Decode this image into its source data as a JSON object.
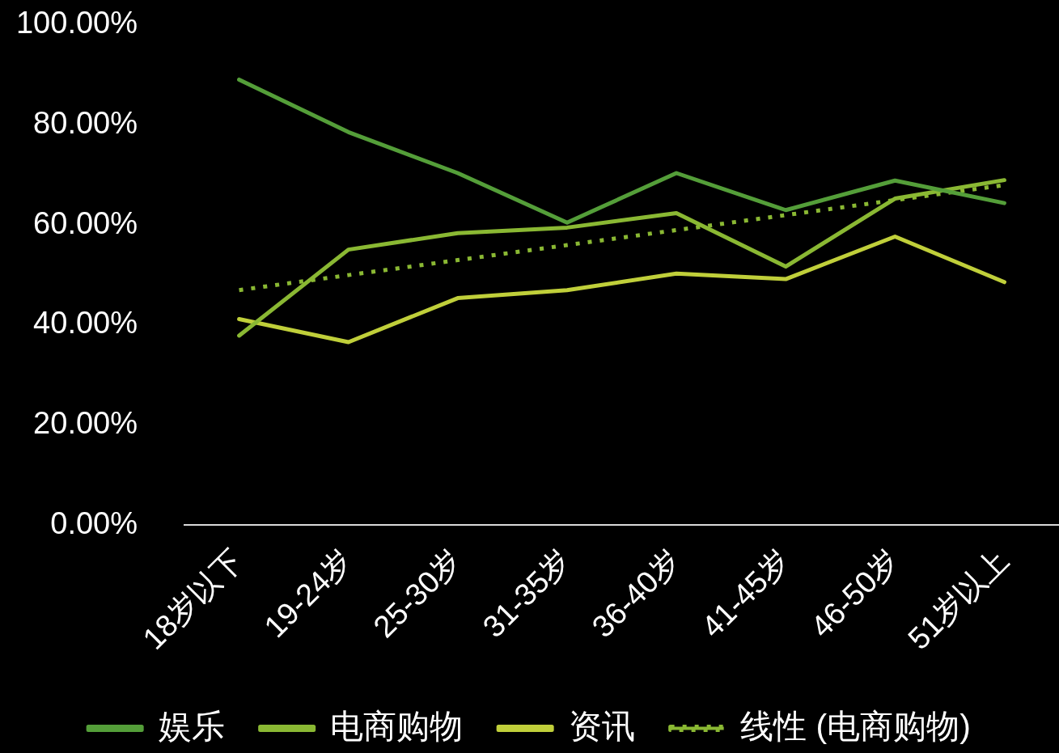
{
  "chart_data": {
    "type": "line",
    "categories": [
      "18岁以下",
      "19-24岁",
      "25-30岁",
      "31-35岁",
      "36-40岁",
      "41-45岁",
      "46-50岁",
      "51岁以上"
    ],
    "series": [
      {
        "name": "娱乐",
        "color": "#549e39",
        "values": [
          89.1,
          78.6,
          70.4,
          60.5,
          70.4,
          63.0,
          68.9,
          64.4
        ]
      },
      {
        "name": "电商购物",
        "color": "#8ab833",
        "values": [
          37.9,
          55.1,
          58.4,
          59.5,
          62.4,
          51.7,
          65.3,
          69.0
        ]
      },
      {
        "name": "资讯",
        "color": "#c0cf3a",
        "values": [
          41.2,
          36.6,
          45.4,
          47.0,
          50.3,
          49.2,
          57.7,
          48.6
        ]
      },
      {
        "name": "线性 (电商购物)",
        "color": "#8ab833",
        "line_style": "dotted",
        "values": [
          47.0,
          50.0,
          53.0,
          56.0,
          59.0,
          62.0,
          65.0,
          68.0
        ]
      }
    ],
    "ylim": [
      0,
      100
    ],
    "yticks": [
      {
        "value": 0,
        "label": "0.00%"
      },
      {
        "value": 20,
        "label": "20.00%"
      },
      {
        "value": 40,
        "label": "40.00%"
      },
      {
        "value": 60,
        "label": "60.00%"
      },
      {
        "value": 80,
        "label": "80.00%"
      },
      {
        "value": 100,
        "label": "100.00%"
      }
    ],
    "grid": false,
    "legend": "bottom",
    "marker": "none",
    "line_style": "solid"
  }
}
